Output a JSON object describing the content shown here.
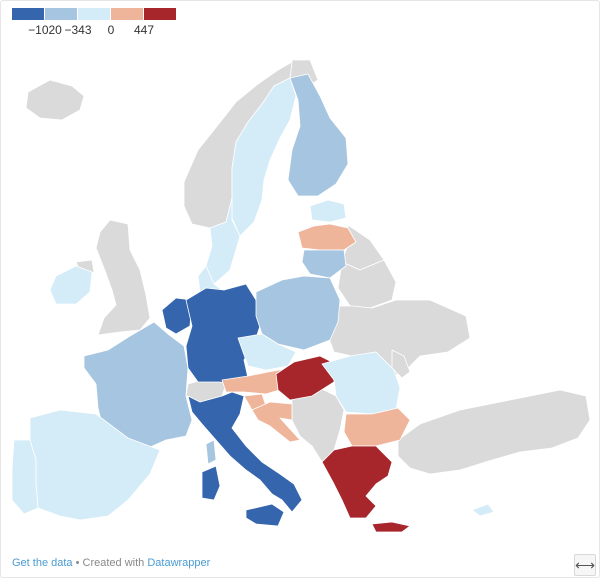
{
  "legend": {
    "colors": [
      "#3565ad",
      "#a6c5e0",
      "#d4ebf8",
      "#efb59b",
      "#a7262b"
    ],
    "labels": [
      "−1020",
      "−343",
      "0",
      "447"
    ]
  },
  "map": {
    "no_data_color": "#dadada",
    "regions": [
      {
        "name": "germany",
        "category": 0
      },
      {
        "name": "netherlands",
        "category": 0
      },
      {
        "name": "italy",
        "category": 0
      },
      {
        "name": "sardinia",
        "category": 0
      },
      {
        "name": "sicily",
        "category": 0
      },
      {
        "name": "finland",
        "category": 1
      },
      {
        "name": "poland",
        "category": 1
      },
      {
        "name": "france",
        "category": 1
      },
      {
        "name": "lithuania",
        "category": 1
      },
      {
        "name": "corsica",
        "category": 1
      },
      {
        "name": "sweden",
        "category": 2
      },
      {
        "name": "norway",
        "category": 2
      },
      {
        "name": "spain",
        "category": 2
      },
      {
        "name": "portugal",
        "category": 2
      },
      {
        "name": "ireland",
        "category": 2
      },
      {
        "name": "denmark",
        "category": 2
      },
      {
        "name": "estonia",
        "category": 2
      },
      {
        "name": "czechia",
        "category": 2
      },
      {
        "name": "romania",
        "category": 2
      },
      {
        "name": "cyprus",
        "category": 2
      },
      {
        "name": "latvia",
        "category": 3
      },
      {
        "name": "austria",
        "category": 3
      },
      {
        "name": "bulgaria",
        "category": 3
      },
      {
        "name": "croatia",
        "category": 3
      },
      {
        "name": "slovenia",
        "category": 3
      },
      {
        "name": "hungary",
        "category": 4
      },
      {
        "name": "greece",
        "category": 4
      },
      {
        "name": "crete",
        "category": 4
      },
      {
        "name": "uk",
        "category": null
      },
      {
        "name": "iceland",
        "category": null
      },
      {
        "name": "belarus",
        "category": null
      },
      {
        "name": "ukraine",
        "category": null
      },
      {
        "name": "russia-north",
        "category": null
      },
      {
        "name": "switzerland",
        "category": null
      },
      {
        "name": "balkans",
        "category": null
      },
      {
        "name": "turkey",
        "category": null
      },
      {
        "name": "moldova",
        "category": null
      },
      {
        "name": "northern-ireland",
        "category": null
      }
    ]
  },
  "footer": {
    "get_data": "Get the data",
    "separator": " • Created with ",
    "brand": "Datawrapper"
  },
  "expand": {
    "icon": "expand-arrows-icon",
    "glyph": "⟷"
  }
}
